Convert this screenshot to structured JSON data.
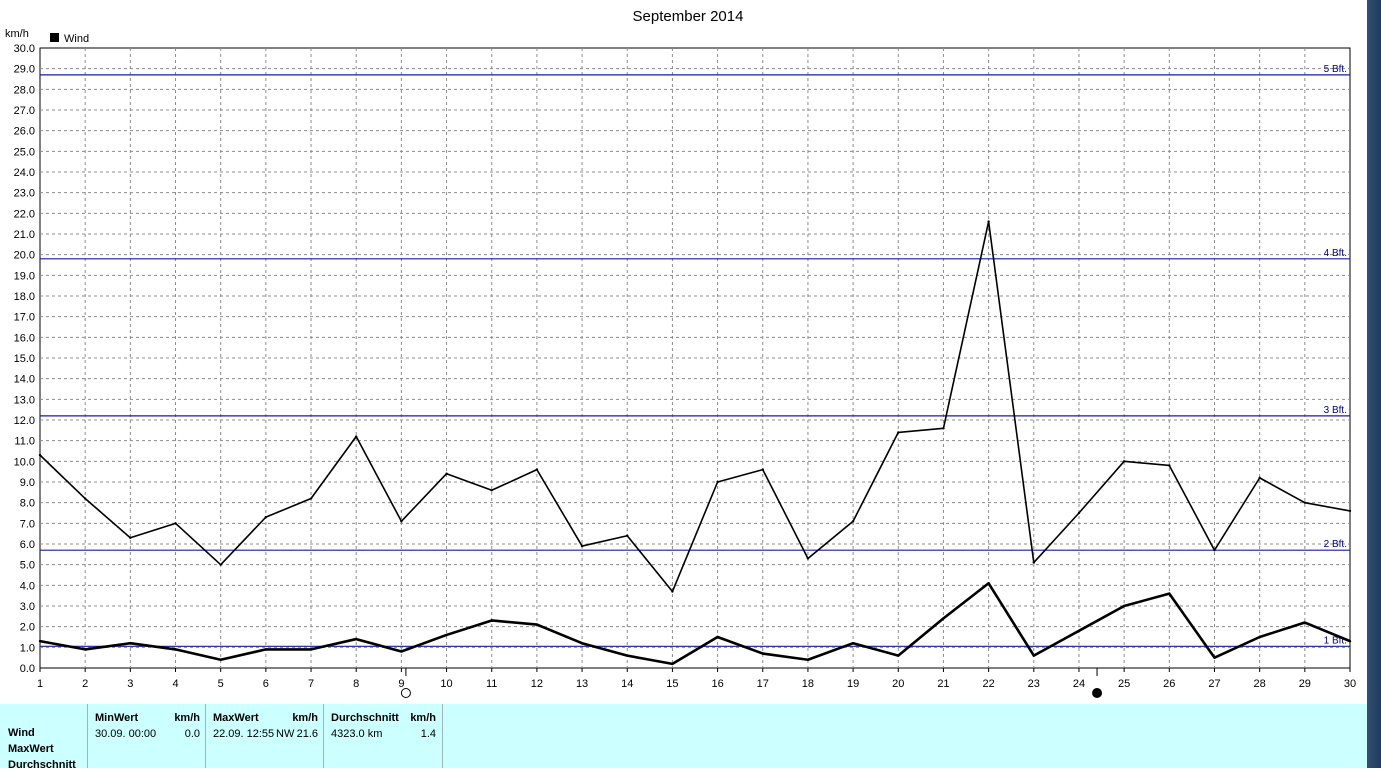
{
  "chart_data": {
    "type": "line",
    "title": "September 2014",
    "ylabel": "km/h",
    "legend": "Wind",
    "legend_position": "top-left",
    "x": [
      1,
      2,
      3,
      4,
      5,
      6,
      7,
      8,
      9,
      10,
      11,
      12,
      13,
      14,
      15,
      16,
      17,
      18,
      19,
      20,
      21,
      22,
      23,
      24,
      25,
      26,
      27,
      28,
      29,
      30
    ],
    "xlim": [
      1,
      30
    ],
    "ylim": [
      0,
      30
    ],
    "ytick_step": 1,
    "grid": true,
    "series": [
      {
        "name": "MaxWert",
        "values": [
          10.3,
          8.2,
          6.3,
          7.0,
          5.0,
          7.3,
          8.2,
          11.2,
          7.1,
          9.4,
          8.6,
          9.6,
          5.9,
          6.4,
          3.7,
          9.0,
          9.6,
          5.3,
          7.1,
          11.4,
          11.6,
          21.6,
          5.1,
          7.5,
          10.0,
          9.8,
          5.7,
          9.2,
          8.0,
          7.6
        ]
      },
      {
        "name": "Durchschnitt",
        "values": [
          1.3,
          0.9,
          1.2,
          0.9,
          0.4,
          0.9,
          0.9,
          1.4,
          0.8,
          1.6,
          2.3,
          2.1,
          1.2,
          0.6,
          0.2,
          1.5,
          0.7,
          0.4,
          1.2,
          0.6,
          2.4,
          4.1,
          0.6,
          1.8,
          3.0,
          3.6,
          0.5,
          1.5,
          2.2,
          1.3
        ]
      }
    ],
    "beaufort_lines": [
      {
        "label": "1 Bft.",
        "value": 1.05
      },
      {
        "label": "2 Bft.",
        "value": 5.7
      },
      {
        "label": "3 Bft.",
        "value": 12.2
      },
      {
        "label": "4 Bft.",
        "value": 19.8
      },
      {
        "label": "5 Bft.",
        "value": 28.7
      }
    ],
    "moon_markers": [
      {
        "phase": "full",
        "day": 9.1
      },
      {
        "phase": "new",
        "day": 24.4
      }
    ]
  },
  "stats": {
    "row_labels": [
      "Wind",
      "MaxWert",
      "Durchschnitt"
    ],
    "min": {
      "header": "MinWert",
      "unit": "km/h",
      "date": "30.09.  00:00",
      "value": "0.0"
    },
    "max": {
      "header": "MaxWert",
      "unit": "km/h",
      "date": "22.09.  12:55",
      "dir": "NW",
      "value": "21.6"
    },
    "avg": {
      "header": "Durchschnitt",
      "unit": "km/h",
      "distance": "4323.0 km",
      "value": "1.4"
    }
  }
}
